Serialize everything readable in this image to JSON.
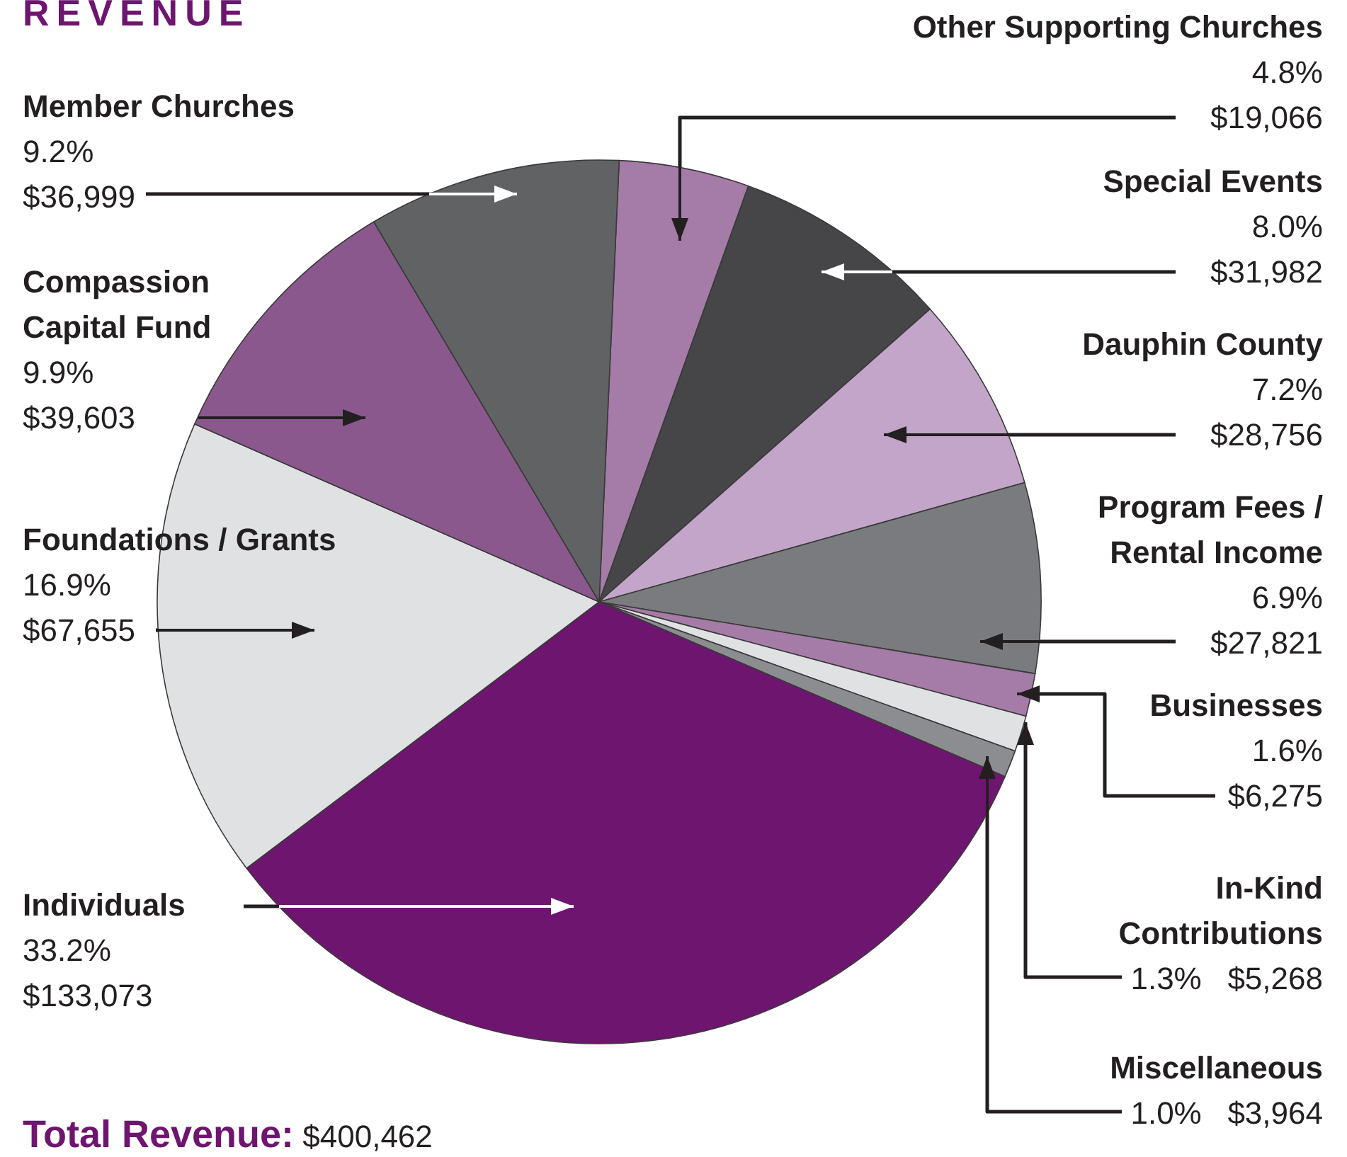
{
  "chart_data": {
    "type": "pie",
    "title": "REVENUE",
    "categories": [
      "Other Supporting Churches",
      "Special Events",
      "Dauphin County",
      "Program Fees /\nRental Income",
      "Businesses",
      "In-Kind\nContributions",
      "Miscellaneous",
      "Individuals",
      "Foundations / Grants",
      "Compassion\nCapital Fund",
      "Member Churches"
    ],
    "values": [
      19066,
      31982,
      28756,
      27821,
      6275,
      5268,
      3964,
      133073,
      67655,
      39603,
      36999
    ],
    "value_labels": [
      "4.8%\n$19,066",
      "8.0%\n$31,982",
      "7.2%\n$28,756",
      "6.9%\n$27,821",
      "1.6%\n$6,275",
      "1.3%   $5,268",
      "1.0%   $3,964",
      "33.2%\n$133,073",
      "16.9%\n$67,655",
      "9.9%\n$39,603",
      "9.2%\n$36,999"
    ],
    "colors": [
      "#a57ba8",
      "#464547",
      "#c2a5c8",
      "#7a7b7e",
      "#a57ba8",
      "#e0e1e3",
      "#8c8d90",
      "#6e1570",
      "#e0e1e3",
      "#8b588e",
      "#616264"
    ],
    "annotations": [
      "Total Revenue: $400,462"
    ],
    "legend": false
  }
}
